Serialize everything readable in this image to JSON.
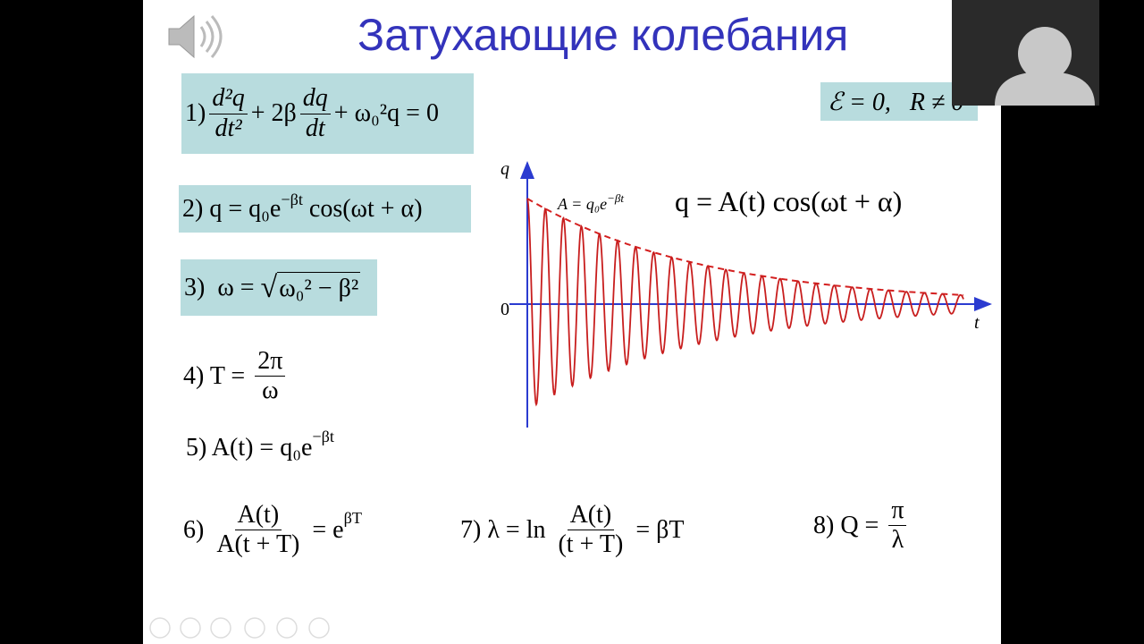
{
  "slide": {
    "title": "Затухающие колебания",
    "condition": "ℰ = 0,   R ≠ 0",
    "f1": {
      "label": "1)",
      "frac1": {
        "num": "d²q",
        "den": "dt²"
      },
      "mid": "+ 2β",
      "frac2": {
        "num": "dq",
        "den": "dt"
      },
      "end": "+ ω₀²q = 0"
    },
    "f2": {
      "main": "2) q = q₀e",
      "sup": "−βt",
      "end": " cos(ωt + α)"
    },
    "f3": {
      "label": "3)  ω = ",
      "root": "ω₀² − β²"
    },
    "f4": {
      "label": "4) T = ",
      "frac": {
        "num": "2π",
        "den": "ω"
      }
    },
    "f5": {
      "main": "5) A(t) = q₀e",
      "sup": "−βt"
    },
    "f6": {
      "label": "6) ",
      "frac": {
        "num": "A(t)",
        "den": "A(t + T)"
      },
      "end": " = e",
      "sup": "βT"
    },
    "f7": {
      "label": "7) λ = ln ",
      "frac": {
        "num": "A(t)",
        "den": "(t + T)"
      },
      "end": " = βT"
    },
    "f8": {
      "label": "8) Q = ",
      "frac": {
        "num": "π",
        "den": "λ"
      }
    },
    "graph": {
      "y_label": "q",
      "x_label": "t",
      "origin_label": "0",
      "envelope": "A = q₀e",
      "envelope_sup": "−βt",
      "equation": "q = A(t) cos(ωt + α)"
    }
  }
}
